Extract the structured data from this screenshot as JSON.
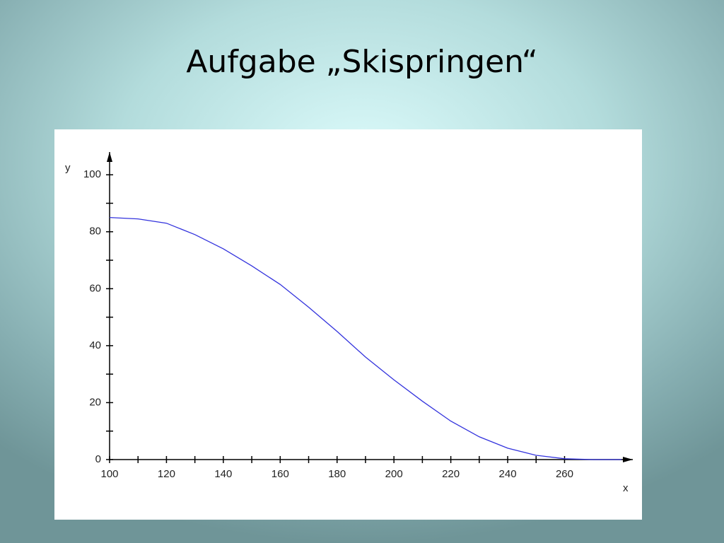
{
  "chart_data": {
    "type": "line",
    "title": "Aufgabe „Skispringen“",
    "x_label": "x",
    "y_label": "y",
    "x": [
      100,
      110,
      120,
      130,
      140,
      150,
      160,
      170,
      180,
      190,
      200,
      210,
      220,
      230,
      240,
      250,
      260,
      270,
      280
    ],
    "series": [
      {
        "name": "y",
        "color": "#3333dd",
        "values": [
          85,
          84.5,
          83,
          79,
          74,
          68,
          61.5,
          53.5,
          45,
          36,
          28,
          20.5,
          13.5,
          8,
          4,
          1.5,
          0.3,
          0,
          0
        ]
      }
    ],
    "xlim": [
      100,
      284
    ],
    "ylim": [
      0,
      108
    ],
    "xticks": [
      100,
      120,
      140,
      160,
      180,
      200,
      220,
      240,
      260
    ],
    "yticks": [
      0,
      20,
      40,
      60,
      80,
      100
    ],
    "grid": false
  }
}
